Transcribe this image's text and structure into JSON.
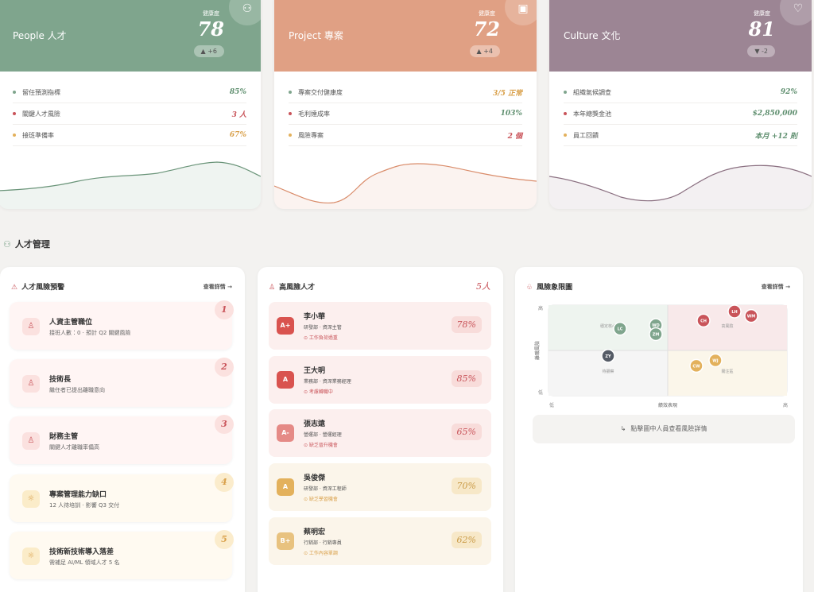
{
  "kpi_cards": [
    {
      "title": "People 人才",
      "score_label": "健康度",
      "score": 78,
      "delta": "▲ +6",
      "metrics": [
        {
          "label": "留任預測指標",
          "value": "85%"
        },
        {
          "label": "關鍵人才風險",
          "value": "3 人"
        },
        {
          "label": "接班準備率",
          "value": "67%"
        }
      ]
    },
    {
      "title": "Project 專案",
      "score_label": "健康度",
      "score": 72,
      "delta": "▲ +4",
      "metrics": [
        {
          "label": "專案交付健康度",
          "value": "3/5 正常"
        },
        {
          "label": "毛利達成率",
          "value": "103%"
        },
        {
          "label": "風險專案",
          "value": "2 個"
        }
      ]
    },
    {
      "title": "Culture 文化",
      "score_label": "健康度",
      "score": 81,
      "delta": "▼ -2",
      "metrics": [
        {
          "label": "組織氣候調查",
          "value": "92%"
        },
        {
          "label": "本年總獎金池",
          "value": "$2,850,000"
        },
        {
          "label": "員工回饋",
          "value": "本月 +12 則"
        }
      ]
    }
  ],
  "section_title": "人才管理",
  "alerts_panel": {
    "title": "人才風險預警",
    "link": "查看詳情 →",
    "items": [
      {
        "rank": "1",
        "title": "人資主管職位",
        "desc": "接班人數：0 · 預計 Q2 關鍵風險"
      },
      {
        "rank": "2",
        "title": "技術長",
        "desc": "繼任者已提出離職意向"
      },
      {
        "rank": "3",
        "title": "財務主管",
        "desc": "關鍵人才離職率偏高"
      },
      {
        "rank": "4",
        "title": "專案管理能力缺口",
        "desc": "12 人待培訓 · 影響 Q3 交付"
      },
      {
        "rank": "5",
        "title": "技術新技術導入落差",
        "desc": "需補足 AI/ML 領域人才 5 名"
      }
    ]
  },
  "high_risk_panel": {
    "title": "高風險人才",
    "count": "5人",
    "people": [
      {
        "grade": "A+",
        "name": "李小華",
        "dept": "研發部 · 資深主管",
        "reason": "⊙ 工作負荷過重",
        "risk": "78%"
      },
      {
        "grade": "A",
        "name": "王大明",
        "dept": "業務部 · 資深業務經理",
        "reason": "⊙ 考慮轉職中",
        "risk": "85%"
      },
      {
        "grade": "A-",
        "name": "張志遠",
        "dept": "營運部 · 營運經理",
        "reason": "⊙ 缺乏晉升機會",
        "risk": "65%"
      },
      {
        "grade": "A",
        "name": "吳俊傑",
        "dept": "研發部 · 資深工程師",
        "reason": "⊙ 缺乏學習機會",
        "risk": "70%"
      },
      {
        "grade": "B+",
        "name": "蔡明宏",
        "dept": "行銷部 · 行銷專員",
        "reason": "⊙ 工作內容單調",
        "risk": "62%"
      }
    ]
  },
  "quadrant_panel": {
    "title": "風險象限圖",
    "link": "查看詳情 →",
    "x_label": "績效表現",
    "y_label": "離職風險",
    "x_ticks": [
      "低",
      "高"
    ],
    "y_ticks": [
      "高",
      "低"
    ],
    "quadrant_labels": [
      "穩定核心",
      "高風險",
      "待觀察",
      "關注區"
    ],
    "xlim": [
      0,
      100
    ],
    "ylim": [
      0,
      100
    ],
    "points": [
      {
        "label": "LC",
        "x": 30,
        "y": 74,
        "color": "#7fa58d"
      },
      {
        "label": "WD",
        "x": 45,
        "y": 78,
        "color": "#7fa58d"
      },
      {
        "label": "ZM",
        "x": 45,
        "y": 68,
        "color": "#7fa58d"
      },
      {
        "label": "ZY",
        "x": 25,
        "y": 44,
        "color": "#555b66"
      },
      {
        "label": "CH",
        "x": 65,
        "y": 83,
        "color": "#c9545a"
      },
      {
        "label": "LH",
        "x": 78,
        "y": 93,
        "color": "#c9545a"
      },
      {
        "label": "WM",
        "x": 85,
        "y": 88,
        "color": "#c9545a"
      },
      {
        "label": "CW",
        "x": 62,
        "y": 33,
        "color": "#e3b15c"
      },
      {
        "label": "WJ",
        "x": 70,
        "y": 39,
        "color": "#e3b15c"
      }
    ],
    "hint": "點擊圖中人員查看風險詳情"
  }
}
